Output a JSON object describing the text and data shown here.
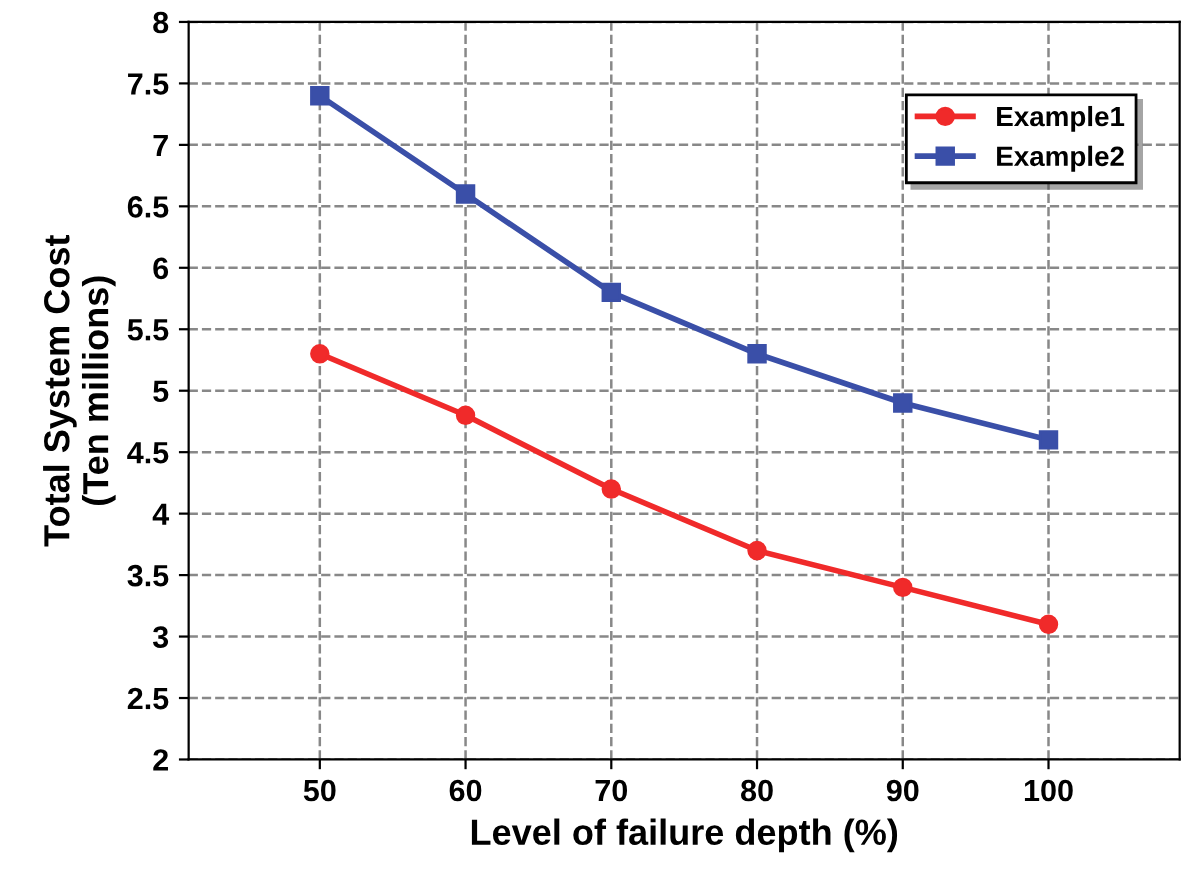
{
  "chart_data": {
    "type": "line",
    "xlabel": "Level of failure depth (%)",
    "ylabel": "Total System Cost\n(Ten millions)",
    "x": [
      50,
      60,
      70,
      80,
      90,
      100
    ],
    "series": [
      {
        "name": "Example1",
        "color": "#f02a2a",
        "marker": "circle",
        "values": [
          5.3,
          4.8,
          4.2,
          3.7,
          3.4,
          3.1
        ]
      },
      {
        "name": "Example2",
        "color": "#3a4fa8",
        "marker": "square",
        "values": [
          7.4,
          6.6,
          5.8,
          5.3,
          4.9,
          4.6
        ]
      }
    ],
    "xlim": [
      41,
      109
    ],
    "xticks": [
      50,
      60,
      70,
      80,
      90,
      100
    ],
    "ylim": [
      2,
      8
    ],
    "yticks": [
      2,
      2.5,
      3,
      3.5,
      4,
      4.5,
      5,
      5.5,
      6,
      6.5,
      7,
      7.5,
      8
    ],
    "grid": true,
    "legend": "top right",
    "line_style": "solid"
  }
}
